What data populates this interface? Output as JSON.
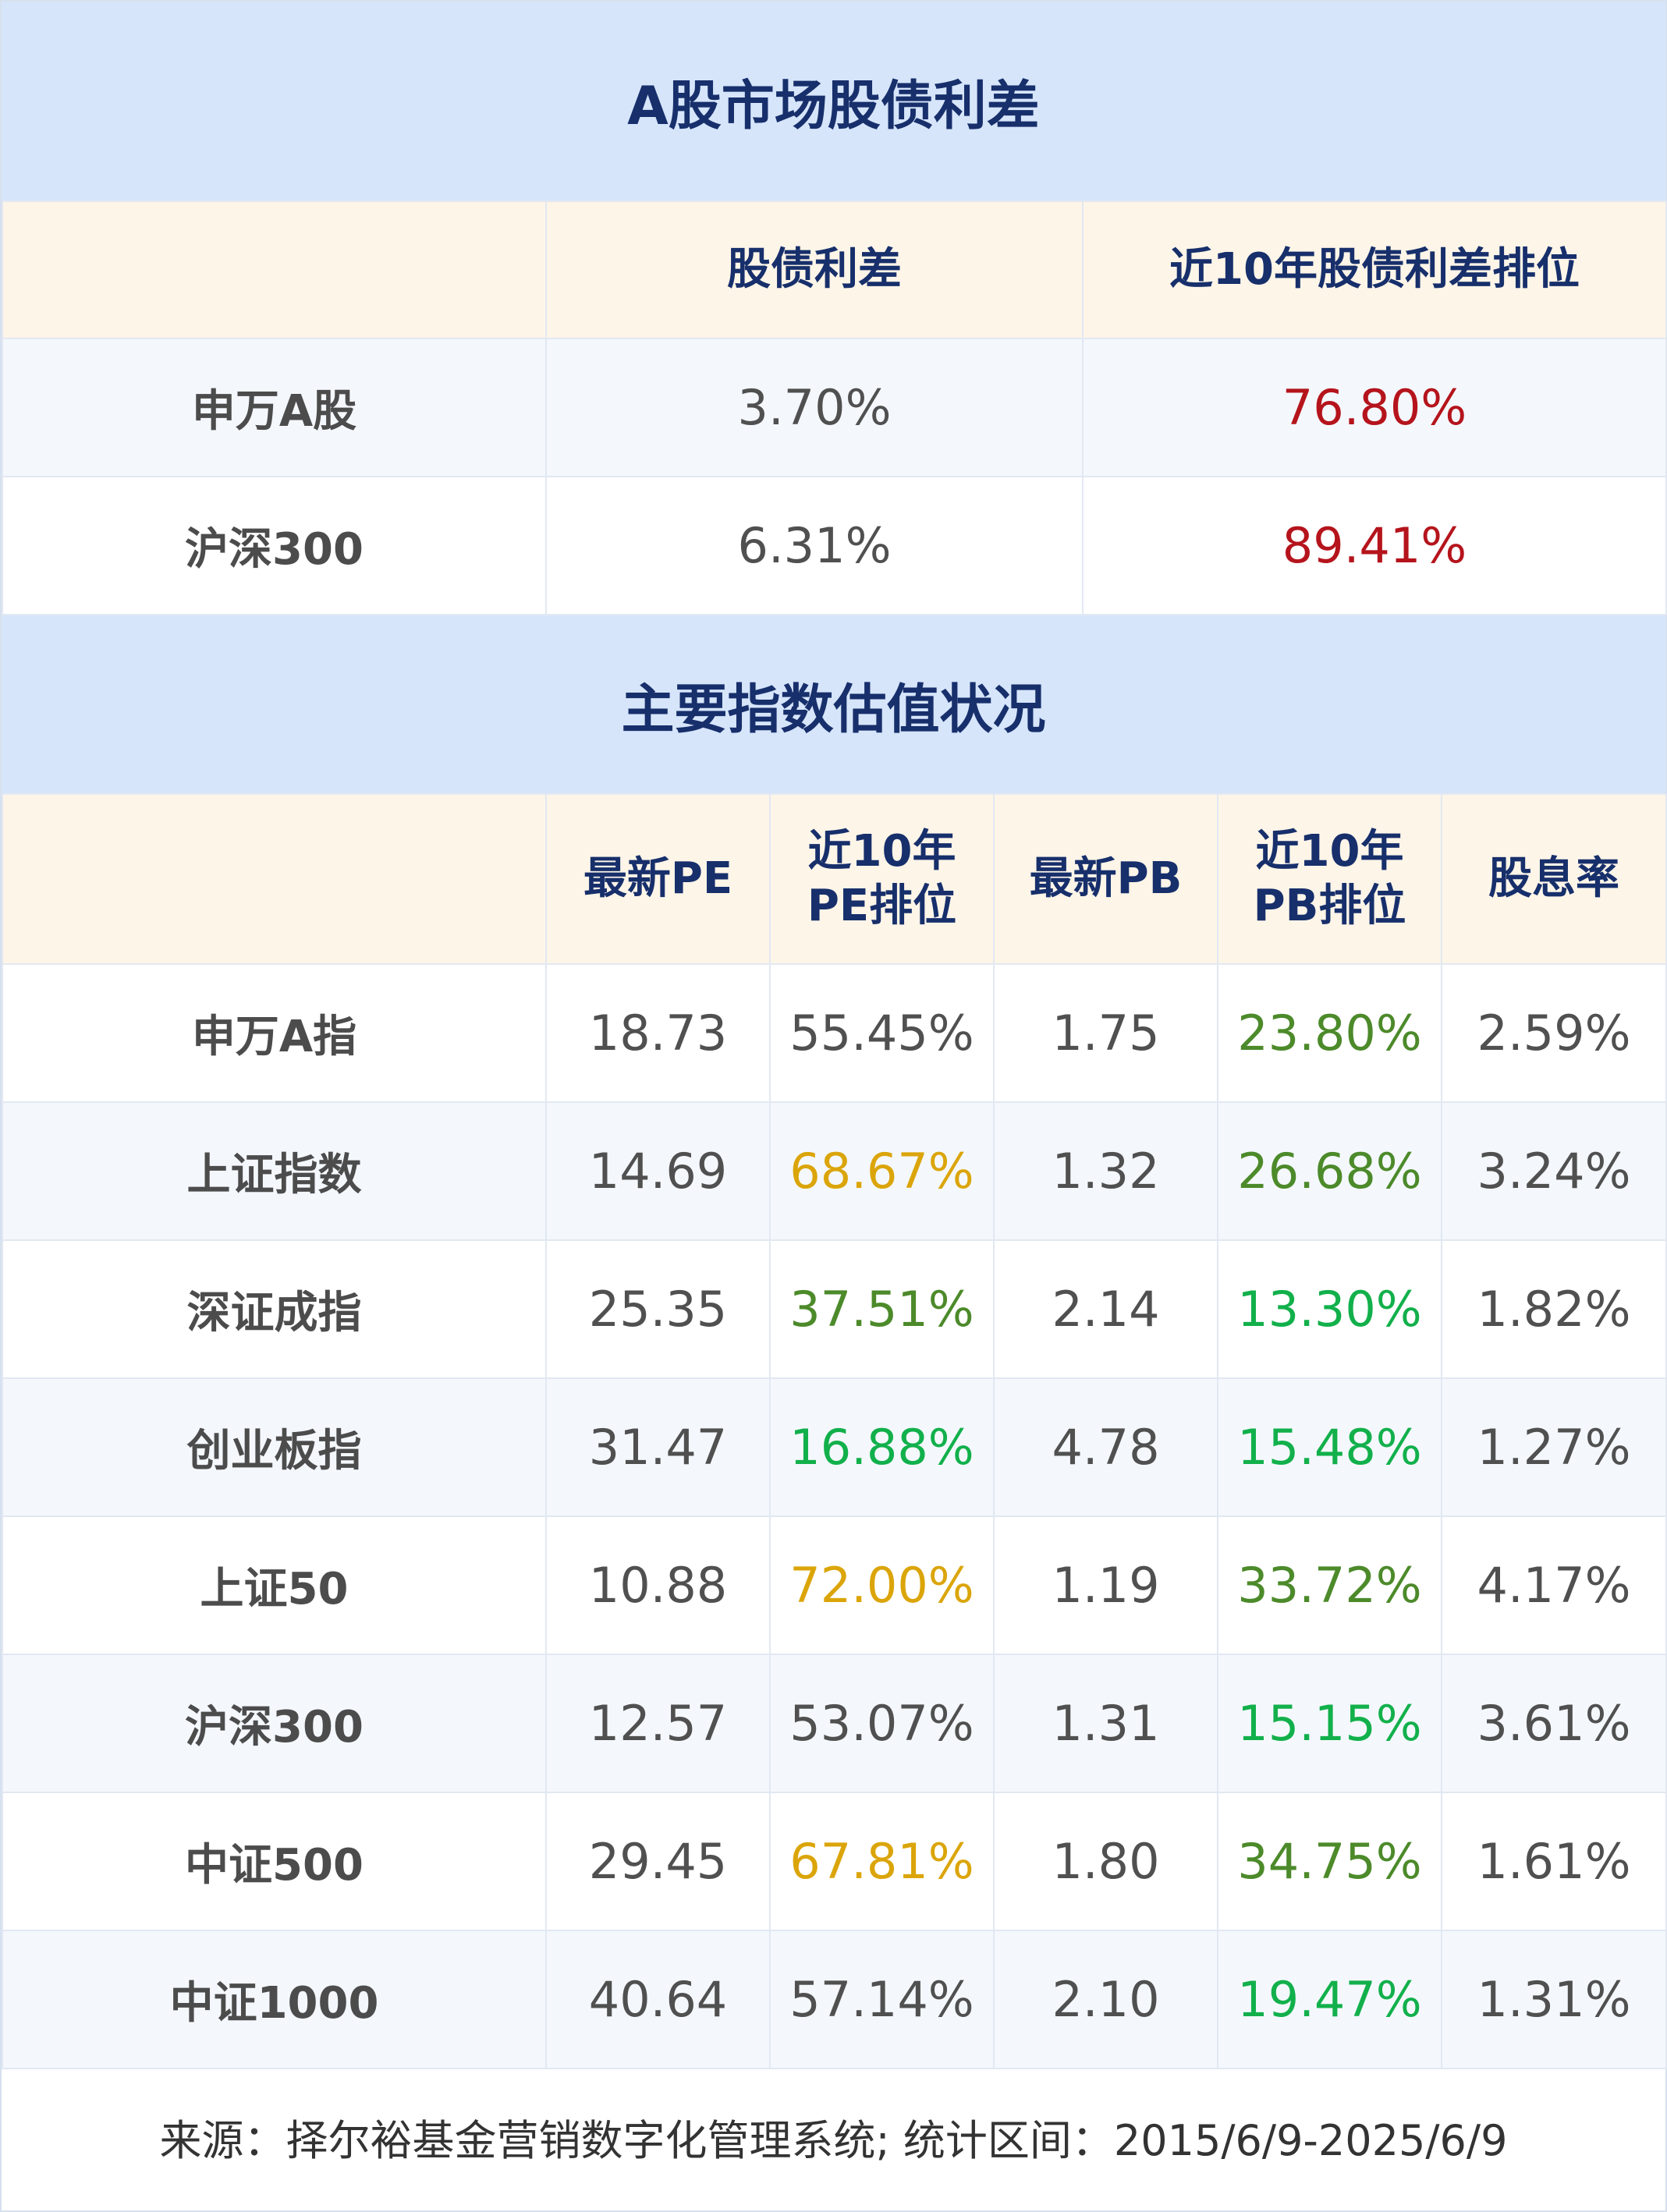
{
  "section1": {
    "title": "A股市场股债利差",
    "headers": [
      "",
      "股债利差",
      "近10年股债利差排位"
    ],
    "rows": [
      {
        "name": "申万A股",
        "spread": "3.70%",
        "rank": "76.80%",
        "rank_color": "#b5141c"
      },
      {
        "name": "沪深300",
        "spread": "6.31%",
        "rank": "89.41%",
        "rank_color": "#b5141c"
      }
    ]
  },
  "section2": {
    "title": "主要指数估值状况",
    "headers": [
      "",
      "最新PE",
      "近10年\nPE排位",
      "最新PB",
      "近10年\nPB排位",
      "股息率"
    ],
    "rows": [
      {
        "name": "申万A指",
        "pe": "18.73",
        "pe_rank": "55.45%",
        "pb": "1.75",
        "pb_rank": "23.80%",
        "dividend": "2.59%",
        "pe_rank_color": "default",
        "pb_rank_color": "olive"
      },
      {
        "name": "上证指数",
        "pe": "14.69",
        "pe_rank": "68.67%",
        "pb": "1.32",
        "pb_rank": "26.68%",
        "dividend": "3.24%",
        "pe_rank_color": "gold",
        "pb_rank_color": "olive"
      },
      {
        "name": "深证成指",
        "pe": "25.35",
        "pe_rank": "37.51%",
        "pb": "2.14",
        "pb_rank": "13.30%",
        "dividend": "1.82%",
        "pe_rank_color": "olive",
        "pb_rank_color": "green"
      },
      {
        "name": "创业板指",
        "pe": "31.47",
        "pe_rank": "16.88%",
        "pb": "4.78",
        "pb_rank": "15.48%",
        "dividend": "1.27%",
        "pe_rank_color": "green",
        "pb_rank_color": "green"
      },
      {
        "name": "上证50",
        "pe": "10.88",
        "pe_rank": "72.00%",
        "pb": "1.19",
        "pb_rank": "33.72%",
        "dividend": "4.17%",
        "pe_rank_color": "gold",
        "pb_rank_color": "olive"
      },
      {
        "name": "沪深300",
        "pe": "12.57",
        "pe_rank": "53.07%",
        "pb": "1.31",
        "pb_rank": "15.15%",
        "dividend": "3.61%",
        "pe_rank_color": "default",
        "pb_rank_color": "green"
      },
      {
        "name": "中证500",
        "pe": "29.45",
        "pe_rank": "67.81%",
        "pb": "1.80",
        "pb_rank": "34.75%",
        "dividend": "1.61%",
        "pe_rank_color": "gold",
        "pb_rank_color": "olive"
      },
      {
        "name": "中证1000",
        "pe": "40.64",
        "pe_rank": "57.14%",
        "pb": "2.10",
        "pb_rank": "19.47%",
        "dividend": "1.31%",
        "pe_rank_color": "default",
        "pb_rank_color": "green"
      }
    ]
  },
  "colors": {
    "title_bg": "#d6e5fa",
    "header_bg": "#fdf5e8",
    "navy": "#172f6b",
    "red": "#b5141c",
    "gold": "#dba50a",
    "olive": "#4c8a2a",
    "green": "#12b04b"
  },
  "footer": {
    "text": "来源：择尔裕基金营销数字化管理系统;  统计区间：2015/6/9-2025/6/9"
  }
}
